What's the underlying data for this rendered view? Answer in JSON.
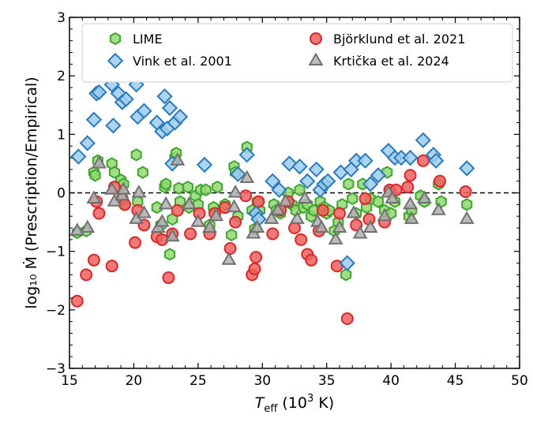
{
  "chart_data": {
    "type": "scatter",
    "xlabel_main": "T",
    "xlabel_sub": "eff",
    "xlabel_rest": " (10",
    "xlabel_sup": "3",
    "xlabel_unit": " K)",
    "ylabel": "log₁₀ Ṁ (Prescription/Empirical)",
    "xlim": [
      15,
      50
    ],
    "ylim": [
      -3,
      3
    ],
    "xticks": [
      "15",
      "20",
      "25",
      "30",
      "35",
      "40",
      "45",
      "50"
    ],
    "yticks": [
      "−3",
      "−2",
      "−1",
      "0",
      "1",
      "2",
      "3"
    ],
    "reference_line": {
      "y": 0,
      "style": "dashed"
    },
    "series": [
      {
        "name": "LIME",
        "marker": "hexagon",
        "fill": "#90d870",
        "edge": "#3fa52f",
        "points": [
          [
            15.6,
            -0.68
          ],
          [
            16.3,
            -0.65
          ],
          [
            16.9,
            0.35
          ],
          [
            17.0,
            0.3
          ],
          [
            17.2,
            0.55
          ],
          [
            18.3,
            0.5
          ],
          [
            18.5,
            0.35
          ],
          [
            19.0,
            0.22
          ],
          [
            19.2,
            0.15
          ],
          [
            19.3,
            -0.2
          ],
          [
            20.2,
            0.65
          ],
          [
            20.3,
            -0.15
          ],
          [
            20.7,
            0.35
          ],
          [
            21.8,
            -0.25
          ],
          [
            22.1,
            -0.55
          ],
          [
            22.4,
            0.1
          ],
          [
            22.5,
            0.15
          ],
          [
            22.8,
            -1.05
          ],
          [
            23.0,
            -0.45
          ],
          [
            23.2,
            0.6
          ],
          [
            23.3,
            0.68
          ],
          [
            23.5,
            0.08
          ],
          [
            23.6,
            -0.15
          ],
          [
            24.2,
            0.1
          ],
          [
            24.3,
            -0.25
          ],
          [
            24.8,
            -0.05
          ],
          [
            25.0,
            -0.2
          ],
          [
            25.2,
            0.05
          ],
          [
            25.6,
            0.05
          ],
          [
            25.9,
            -0.55
          ],
          [
            26.2,
            -0.25
          ],
          [
            26.5,
            0.1
          ],
          [
            27.1,
            -0.2
          ],
          [
            27.6,
            -0.72
          ],
          [
            27.8,
            0.45
          ],
          [
            27.9,
            0.35
          ],
          [
            28.1,
            -0.4
          ],
          [
            28.8,
            0.78
          ],
          [
            29.2,
            -0.3
          ],
          [
            29.4,
            -0.62
          ],
          [
            29.6,
            -0.15
          ],
          [
            29.8,
            -0.3
          ],
          [
            30.9,
            -0.2
          ],
          [
            31.1,
            -0.3
          ],
          [
            31.4,
            -0.35
          ],
          [
            32.0,
            0.0
          ],
          [
            32.3,
            -0.2
          ],
          [
            32.6,
            -0.3
          ],
          [
            32.9,
            0.05
          ],
          [
            33.2,
            -0.25
          ],
          [
            33.5,
            -0.2
          ],
          [
            33.8,
            -0.4
          ],
          [
            34.0,
            -0.3
          ],
          [
            34.5,
            -0.15
          ],
          [
            34.8,
            -0.25
          ],
          [
            35.0,
            -0.35
          ],
          [
            35.2,
            -0.3
          ],
          [
            35.6,
            -0.65
          ],
          [
            35.9,
            -0.5
          ],
          [
            36.2,
            -0.2
          ],
          [
            36.5,
            -1.4
          ],
          [
            36.7,
            0.15
          ],
          [
            37.0,
            -0.1
          ],
          [
            37.3,
            -0.35
          ],
          [
            37.8,
            0.15
          ],
          [
            38.1,
            -0.25
          ],
          [
            38.4,
            -0.1
          ],
          [
            39.0,
            -0.15
          ],
          [
            39.5,
            -0.3
          ],
          [
            39.7,
            0.35
          ],
          [
            40.0,
            -0.35
          ],
          [
            40.3,
            -0.15
          ],
          [
            41.4,
            -0.4
          ],
          [
            41.6,
            -0.3
          ],
          [
            42.3,
            -0.05
          ],
          [
            42.6,
            -0.15
          ],
          [
            43.7,
            0.15
          ],
          [
            43.9,
            -0.15
          ],
          [
            45.9,
            -0.2
          ]
        ]
      },
      {
        "name": "Björklund et al. 2021",
        "marker": "circle",
        "fill": "#f06060",
        "edge": "#d42a2a",
        "points": [
          [
            15.6,
            -1.85
          ],
          [
            16.3,
            -1.4
          ],
          [
            16.9,
            -1.15
          ],
          [
            17.1,
            -0.15
          ],
          [
            17.3,
            -0.35
          ],
          [
            18.3,
            -1.25
          ],
          [
            18.5,
            0.1
          ],
          [
            19.1,
            -0.1
          ],
          [
            19.3,
            -0.2
          ],
          [
            20.1,
            -0.85
          ],
          [
            20.3,
            -0.3
          ],
          [
            20.8,
            -0.55
          ],
          [
            21.8,
            -0.75
          ],
          [
            22.2,
            -0.8
          ],
          [
            22.7,
            -1.45
          ],
          [
            23.0,
            -0.7
          ],
          [
            23.4,
            -0.3
          ],
          [
            24.4,
            -0.7
          ],
          [
            25.1,
            -0.35
          ],
          [
            25.9,
            -0.7
          ],
          [
            26.3,
            -0.35
          ],
          [
            27.1,
            -0.25
          ],
          [
            27.5,
            -0.95
          ],
          [
            27.9,
            -0.5
          ],
          [
            28.7,
            -0.05
          ],
          [
            29.2,
            -1.4
          ],
          [
            29.4,
            -1.3
          ],
          [
            29.5,
            -1.1
          ],
          [
            29.7,
            -0.15
          ],
          [
            30.8,
            -0.7
          ],
          [
            31.4,
            -0.3
          ],
          [
            32.0,
            -0.15
          ],
          [
            32.5,
            -0.6
          ],
          [
            33.0,
            -0.8
          ],
          [
            33.5,
            -1.05
          ],
          [
            33.8,
            -1.15
          ],
          [
            34.4,
            -0.65
          ],
          [
            34.7,
            -0.3
          ],
          [
            35.8,
            -1.25
          ],
          [
            36.0,
            -0.35
          ],
          [
            36.6,
            -2.15
          ],
          [
            37.3,
            -0.55
          ],
          [
            38.0,
            -0.1
          ],
          [
            38.3,
            -0.45
          ],
          [
            39.5,
            -0.5
          ],
          [
            39.9,
            0.05
          ],
          [
            40.4,
            0.05
          ],
          [
            41.3,
            0.1
          ],
          [
            41.5,
            0.3
          ],
          [
            42.5,
            0.55
          ],
          [
            43.8,
            0.2
          ],
          [
            45.8,
            0.02
          ]
        ]
      },
      {
        "name": "Vink et al. 2001",
        "marker": "diamond",
        "fill": "#9ccbf0",
        "edge": "#2c7ab8",
        "points": [
          [
            15.7,
            0.62
          ],
          [
            16.4,
            0.85
          ],
          [
            16.9,
            1.25
          ],
          [
            17.1,
            1.7
          ],
          [
            17.3,
            1.72
          ],
          [
            18.3,
            1.85
          ],
          [
            18.4,
            1.15
          ],
          [
            18.8,
            1.7
          ],
          [
            19.1,
            1.55
          ],
          [
            19.4,
            1.6
          ],
          [
            20.2,
            1.85
          ],
          [
            20.3,
            1.3
          ],
          [
            20.8,
            1.4
          ],
          [
            21.8,
            1.2
          ],
          [
            22.2,
            1.05
          ],
          [
            22.4,
            1.65
          ],
          [
            22.6,
            1.1
          ],
          [
            22.8,
            1.45
          ],
          [
            23.0,
            0.5
          ],
          [
            23.2,
            1.2
          ],
          [
            23.6,
            1.3
          ],
          [
            25.5,
            0.48
          ],
          [
            28.1,
            0.32
          ],
          [
            28.8,
            0.65
          ],
          [
            29.5,
            -0.35
          ],
          [
            29.7,
            -0.45
          ],
          [
            30.8,
            0.2
          ],
          [
            31.3,
            0.05
          ],
          [
            32.1,
            0.5
          ],
          [
            32.9,
            0.45
          ],
          [
            33.5,
            0.2
          ],
          [
            34.2,
            0.4
          ],
          [
            34.5,
            0.05
          ],
          [
            34.8,
            0.15
          ],
          [
            35.1,
            0.2
          ],
          [
            36.1,
            0.35
          ],
          [
            36.6,
            -1.2
          ],
          [
            36.9,
            0.4
          ],
          [
            37.3,
            0.55
          ],
          [
            38.0,
            0.55
          ],
          [
            38.4,
            0.15
          ],
          [
            39.0,
            0.3
          ],
          [
            39.8,
            0.72
          ],
          [
            40.3,
            0.6
          ],
          [
            40.8,
            0.6
          ],
          [
            41.5,
            0.6
          ],
          [
            42.5,
            0.9
          ],
          [
            43.3,
            0.65
          ],
          [
            43.5,
            0.55
          ],
          [
            45.9,
            0.42
          ]
        ]
      },
      {
        "name": "Krtička et al. 2024",
        "marker": "triangle",
        "fill": "#b0b0b0",
        "edge": "#707070",
        "points": [
          [
            15.6,
            -0.65
          ],
          [
            16.4,
            -0.6
          ],
          [
            16.9,
            -0.1
          ],
          [
            17.3,
            0.5
          ],
          [
            18.3,
            0.05
          ],
          [
            18.5,
            -0.15
          ],
          [
            19.1,
            -0.05
          ],
          [
            19.2,
            0.05
          ],
          [
            20.2,
            -0.45
          ],
          [
            20.4,
            0.0
          ],
          [
            20.8,
            -0.35
          ],
          [
            21.9,
            -0.6
          ],
          [
            22.2,
            -0.5
          ],
          [
            22.5,
            -0.2
          ],
          [
            23.0,
            -0.75
          ],
          [
            23.4,
            0.55
          ],
          [
            24.3,
            -0.2
          ],
          [
            25.0,
            -0.5
          ],
          [
            25.9,
            -0.6
          ],
          [
            26.4,
            -0.4
          ],
          [
            27.4,
            -1.15
          ],
          [
            27.8,
            -0.25
          ],
          [
            27.9,
            0.0
          ],
          [
            28.8,
            0.25
          ],
          [
            29.3,
            -0.7
          ],
          [
            29.6,
            -0.6
          ],
          [
            30.7,
            -0.45
          ],
          [
            31.2,
            -0.3
          ],
          [
            31.8,
            -0.15
          ],
          [
            32.7,
            -0.45
          ],
          [
            33.3,
            -0.1
          ],
          [
            34.3,
            -0.5
          ],
          [
            34.6,
            -0.6
          ],
          [
            35.7,
            -0.8
          ],
          [
            36.0,
            -0.6
          ],
          [
            37.1,
            -0.35
          ],
          [
            37.6,
            -0.7
          ],
          [
            38.4,
            -0.6
          ],
          [
            39.5,
            -0.4
          ],
          [
            39.8,
            0.0
          ],
          [
            40.1,
            -0.1
          ],
          [
            41.5,
            -0.2
          ],
          [
            41.6,
            -0.45
          ],
          [
            42.6,
            -0.1
          ],
          [
            43.7,
            -0.3
          ],
          [
            45.9,
            -0.45
          ]
        ]
      }
    ],
    "legend": {
      "location": "top",
      "columns": 2,
      "order": [
        "LIME",
        "Björklund et al. 2021",
        "Vink et al. 2001",
        "Krtička et al. 2024"
      ]
    }
  }
}
